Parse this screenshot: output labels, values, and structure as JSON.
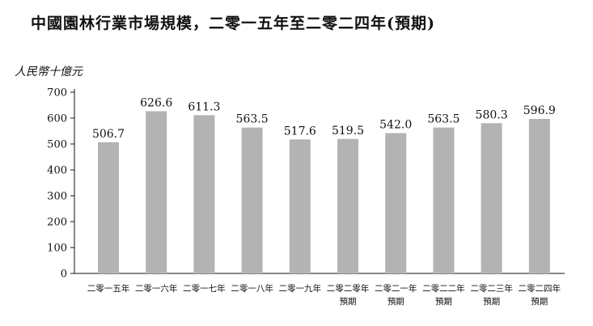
{
  "chart_data": {
    "type": "bar",
    "title": "中國園林行業市場規模，二零一五年至二零二四年(預期)",
    "ylabel": "人民幣十億元",
    "xlabel": "",
    "ylim": [
      0,
      700
    ],
    "yticks": [
      0,
      100,
      200,
      300,
      400,
      500,
      600,
      700
    ],
    "categories": [
      [
        "二零一五年"
      ],
      [
        "二零一六年"
      ],
      [
        "二零一七年"
      ],
      [
        "二零一八年"
      ],
      [
        "二零一九年"
      ],
      [
        "二零二零年",
        "預期"
      ],
      [
        "二零二一年",
        "預期"
      ],
      [
        "二零二二年",
        "預期"
      ],
      [
        "二零二三年",
        "預期"
      ],
      [
        "二零二四年",
        "預期"
      ]
    ],
    "values": [
      506.7,
      626.6,
      611.3,
      563.5,
      517.6,
      519.5,
      542.0,
      563.5,
      580.3,
      596.9
    ],
    "value_labels": [
      "506.7",
      "626.6",
      "611.3",
      "563.5",
      "517.6",
      "519.5",
      "542.0",
      "563.5",
      "580.3",
      "596.9"
    ],
    "bar_color": "#b3b3b3",
    "grid": false
  }
}
